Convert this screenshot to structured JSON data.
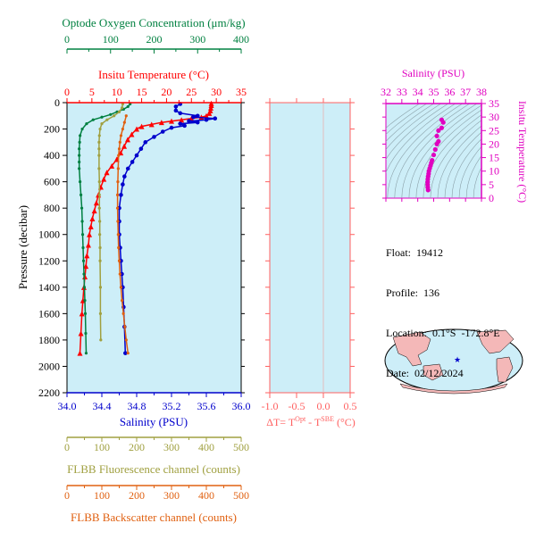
{
  "colors": {
    "oxygen": "#008040",
    "temperature": "#ff0000",
    "salinity": "#0000cc",
    "fluorescence": "#a0a040",
    "backscatter": "#e06010",
    "magenta": "#e000c0",
    "delta": "#ff6060",
    "panel_bg": "#cdeef8",
    "land": "#f4b8b8"
  },
  "axes": {
    "oxygen_title": "Optode Oxygen Concentration (μm/kg)",
    "oxygen_ticks": [
      "0",
      "100",
      "200",
      "300",
      "400"
    ],
    "temp_title": "Insitu Temperature (°C)",
    "temp_ticks": [
      "0",
      "5",
      "10",
      "15",
      "20",
      "25",
      "30",
      "35"
    ],
    "pressure_title": "Pressure (decibar)",
    "pressure_ticks": [
      "0",
      "200",
      "400",
      "600",
      "800",
      "1000",
      "1200",
      "1400",
      "1600",
      "1800",
      "2000",
      "2200"
    ],
    "salinity_title": "Salinity (PSU)",
    "salinity_ticks": [
      "34.0",
      "34.4",
      "34.8",
      "35.2",
      "35.6",
      "36.0"
    ],
    "fl_title": "FLBB Fluorescence channel (counts)",
    "fl_ticks": [
      "0",
      "100",
      "200",
      "300",
      "400",
      "500"
    ],
    "bs_title": "FLBB Backscatter channel (counts)",
    "bs_ticks": [
      "0",
      "100",
      "200",
      "300",
      "400",
      "500"
    ],
    "dt_title_prefix": "ΔT= T",
    "dt_title_sup1": "Opt",
    "dt_title_mid": " - T",
    "dt_title_sup2": "SBE",
    "dt_title_suffix": " (°C)",
    "dt_ticks": [
      "-1.0",
      "-0.5",
      "0.0",
      "0.5"
    ],
    "ts_sal_title": "Salinity (PSU)",
    "ts_sal_ticks": [
      "32",
      "33",
      "34",
      "35",
      "36",
      "37",
      "38"
    ],
    "ts_temp_title": "Insitu Temperature (°C)",
    "ts_temp_ticks": [
      "0",
      "5",
      "10",
      "15",
      "20",
      "25",
      "30",
      "35"
    ]
  },
  "info": {
    "float_label": "Float:",
    "float_value": "19412",
    "profile_label": "Profile:",
    "profile_value": "136",
    "location_label": "Location:",
    "location_value": "0.1°S  -172.8°E",
    "date_label": "Date:",
    "date_value": "02/12/2024"
  },
  "chart_data": [
    {
      "type": "line",
      "title": "Main profile",
      "ylabel": "Pressure (decibar)",
      "ylim": [
        2200,
        0
      ],
      "series": [
        {
          "name": "Insitu Temperature (°C)",
          "axis_range": [
            0,
            35
          ],
          "x": [
            29.0,
            29.0,
            28.9,
            28.8,
            28.6,
            28.0,
            27.0,
            25.0,
            23.0,
            21.0,
            19.0,
            17.0,
            15.0,
            14.0,
            13.0,
            12.2,
            11.5,
            10.8,
            10.0,
            9.0,
            8.0,
            7.4,
            6.8,
            6.3,
            5.9,
            5.5,
            5.1,
            4.8,
            4.5,
            4.3,
            4.0,
            3.8,
            3.6,
            3.4,
            3.2,
            3.0,
            2.8,
            2.6
          ],
          "y": [
            5,
            20,
            40,
            60,
            80,
            100,
            110,
            120,
            130,
            140,
            150,
            165,
            180,
            200,
            240,
            280,
            330,
            380,
            430,
            480,
            530,
            580,
            640,
            700,
            760,
            820,
            880,
            940,
            1000,
            1080,
            1160,
            1240,
            1320,
            1400,
            1500,
            1600,
            1750,
            1900
          ]
        },
        {
          "name": "Salinity (PSU)",
          "axis_range": [
            34.0,
            36.0
          ],
          "x": [
            35.3,
            35.25,
            35.25,
            35.3,
            35.5,
            35.45,
            35.7,
            35.6,
            35.4,
            35.5,
            35.3,
            35.35,
            35.2,
            35.1,
            35.0,
            34.9,
            34.85,
            34.8,
            34.75,
            34.7,
            34.66,
            34.64,
            34.62,
            34.6,
            34.6,
            34.6,
            34.61,
            34.62,
            34.63,
            34.64,
            34.65,
            34.66,
            34.67
          ],
          "y": [
            10,
            30,
            60,
            80,
            100,
            110,
            120,
            130,
            140,
            150,
            160,
            175,
            190,
            220,
            260,
            300,
            350,
            400,
            450,
            500,
            560,
            620,
            700,
            800,
            900,
            1000,
            1100,
            1200,
            1300,
            1400,
            1550,
            1700,
            1900
          ]
        },
        {
          "name": "Optode Oxygen Concentration (μm/kg)",
          "axis_range": [
            0,
            400
          ],
          "x": [
            145,
            140,
            130,
            115,
            100,
            80,
            60,
            45,
            35,
            30,
            29,
            28,
            28,
            28,
            28,
            30,
            32,
            34,
            35,
            36,
            37,
            38,
            39,
            40,
            41,
            42,
            43,
            44
          ],
          "y": [
            10,
            30,
            50,
            70,
            90,
            110,
            130,
            160,
            200,
            250,
            300,
            350,
            400,
            450,
            500,
            600,
            700,
            800,
            900,
            1000,
            1100,
            1200,
            1300,
            1400,
            1500,
            1600,
            1750,
            1900
          ]
        },
        {
          "name": "FLBB Fluorescence channel (counts)",
          "axis_range": [
            0,
            500
          ],
          "x": [
            160,
            158,
            150,
            135,
            115,
            100,
            95,
            93,
            92,
            92,
            92,
            92,
            93,
            93,
            93,
            94,
            94,
            95,
            95,
            96,
            96,
            97
          ],
          "y": [
            10,
            40,
            70,
            100,
            130,
            160,
            200,
            250,
            300,
            350,
            400,
            500,
            600,
            700,
            800,
            900,
            1000,
            1100,
            1200,
            1400,
            1600,
            1800
          ]
        },
        {
          "name": "FLBB Backscatter channel (counts)",
          "axis_range": [
            0,
            500
          ],
          "x": [
            170,
            165,
            160,
            155,
            152,
            150,
            148,
            147,
            146,
            145,
            145,
            146,
            147,
            148,
            150,
            152,
            155,
            158,
            162,
            166,
            170,
            175
          ],
          "y": [
            100,
            150,
            200,
            250,
            300,
            350,
            400,
            500,
            600,
            700,
            800,
            900,
            1000,
            1100,
            1200,
            1300,
            1400,
            1500,
            1600,
            1700,
            1800,
            1900
          ]
        }
      ]
    },
    {
      "type": "line",
      "title": "ΔT panel",
      "xlabel": "ΔT= TOpt - TSBE (°C)",
      "xlim": [
        -1.0,
        0.5
      ],
      "ylim": [
        2200,
        0
      ],
      "series": []
    },
    {
      "type": "scatter",
      "title": "T-S diagram",
      "xlabel": "Salinity (PSU)",
      "ylabel": "Insitu Temperature (°C)",
      "xlim": [
        32,
        38
      ],
      "ylim": [
        0,
        35
      ],
      "x": [
        35.5,
        35.6,
        35.5,
        35.3,
        35.2,
        35.3,
        35.2,
        35.1,
        35.0,
        34.9,
        34.85,
        34.8,
        34.75,
        34.7,
        34.68,
        34.65,
        34.63,
        34.62,
        34.62,
        34.63,
        34.65
      ],
      "y": [
        29,
        28,
        26,
        25,
        23,
        21,
        20,
        18,
        16,
        14,
        13,
        12,
        11,
        10,
        9,
        8,
        7,
        6,
        5,
        4,
        3
      ]
    }
  ]
}
